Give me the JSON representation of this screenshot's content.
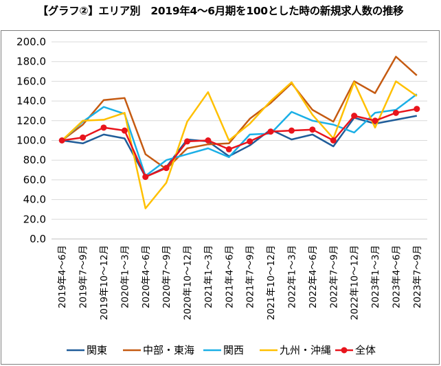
{
  "chart_data": {
    "type": "line",
    "title": "【グラフ②】エリア別　2019年4～6月期を100とした時の新規求人数の推移",
    "xlabel": "",
    "ylabel": "",
    "ylim": [
      0,
      200
    ],
    "yticks": [
      "0.0",
      "20.0",
      "40.0",
      "60.0",
      "80.0",
      "100.0",
      "120.0",
      "140.0",
      "160.0",
      "180.0",
      "200.0"
    ],
    "grid": "horizontal",
    "legend_position": "bottom",
    "categories": [
      "2019年4～6月",
      "2019年7～9月",
      "2019年10～12月",
      "2020年1～3月",
      "2020年4～6月",
      "2020年7～9月",
      "2020年10～12月",
      "2021年1～3月",
      "2021年4～6月",
      "2021年7～9月",
      "2021年10～12月",
      "2022年1～3月",
      "2022年4～6月",
      "2022年7～9月",
      "2022年10～12月",
      "2023年1～3月",
      "2023年4～6月",
      "2023年7～9月"
    ],
    "series": [
      {
        "name": "関東",
        "color": "#1f5c99",
        "marker": false,
        "values": [
          100,
          97,
          106,
          102,
          63,
          73,
          101,
          99,
          84,
          95,
          111,
          101,
          106,
          94,
          123,
          117,
          121,
          125
        ]
      },
      {
        "name": "中部・東海",
        "color": "#c55a11",
        "marker": false,
        "values": [
          100,
          116,
          141,
          143,
          86,
          71,
          92,
          96,
          97,
          122,
          138,
          158,
          131,
          119,
          160,
          148,
          185,
          166
        ]
      },
      {
        "name": "関西",
        "color": "#1aafe6",
        "marker": false,
        "values": [
          100,
          119,
          134,
          127,
          64,
          80,
          86,
          92,
          83,
          106,
          107,
          129,
          120,
          116,
          108,
          128,
          131,
          147
        ]
      },
      {
        "name": "九州・沖縄",
        "color": "#ffc000",
        "marker": false,
        "values": [
          100,
          120,
          121,
          128,
          31,
          57,
          119,
          149,
          100,
          117,
          140,
          159,
          126,
          102,
          159,
          113,
          160,
          145
        ]
      },
      {
        "name": "全体",
        "color": "#e8141c",
        "marker": true,
        "values": [
          100,
          103,
          113,
          110,
          63,
          72,
          99,
          100,
          91,
          99,
          109,
          110,
          111,
          100,
          125,
          120,
          128,
          132
        ]
      }
    ]
  }
}
